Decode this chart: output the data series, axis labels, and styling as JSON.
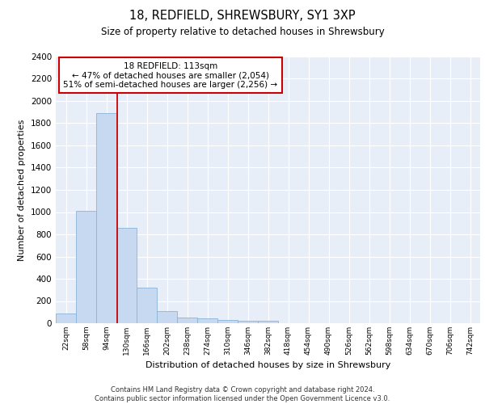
{
  "title1": "18, REDFIELD, SHREWSBURY, SY1 3XP",
  "title2": "Size of property relative to detached houses in Shrewsbury",
  "xlabel": "Distribution of detached houses by size in Shrewsbury",
  "ylabel": "Number of detached properties",
  "bin_labels": [
    "22sqm",
    "58sqm",
    "94sqm",
    "130sqm",
    "166sqm",
    "202sqm",
    "238sqm",
    "274sqm",
    "310sqm",
    "346sqm",
    "382sqm",
    "418sqm",
    "454sqm",
    "490sqm",
    "526sqm",
    "562sqm",
    "598sqm",
    "634sqm",
    "670sqm",
    "706sqm",
    "742sqm"
  ],
  "bar_heights": [
    90,
    1010,
    1890,
    860,
    320,
    110,
    50,
    45,
    30,
    20,
    20,
    0,
    0,
    0,
    0,
    0,
    0,
    0,
    0,
    0,
    0
  ],
  "bar_color": "#c6d9f0",
  "bar_edge_color": "#8ab4d8",
  "background_color": "#e8eef8",
  "grid_color": "#ffffff",
  "redline_x": 2.55,
  "annotation_text": "18 REDFIELD: 113sqm\n← 47% of detached houses are smaller (2,054)\n51% of semi-detached houses are larger (2,256) →",
  "annotation_box_color": "#ffffff",
  "annotation_box_edge": "#cc0000",
  "ylim": [
    0,
    2400
  ],
  "yticks": [
    0,
    200,
    400,
    600,
    800,
    1000,
    1200,
    1400,
    1600,
    1800,
    2000,
    2200,
    2400
  ],
  "footnote1": "Contains HM Land Registry data © Crown copyright and database right 2024.",
  "footnote2": "Contains public sector information licensed under the Open Government Licence v3.0."
}
